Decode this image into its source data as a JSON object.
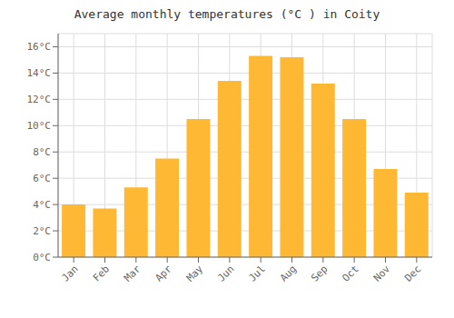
{
  "chart_data": {
    "type": "bar",
    "title": "Average monthly temperatures (°C ) in Coity",
    "categories": [
      "Jan",
      "Feb",
      "Mar",
      "Apr",
      "May",
      "Jun",
      "Jul",
      "Aug",
      "Sep",
      "Oct",
      "Nov",
      "Dec"
    ],
    "values": [
      4.0,
      3.7,
      5.3,
      7.5,
      10.5,
      13.4,
      15.3,
      15.2,
      13.2,
      10.5,
      6.7,
      4.9
    ],
    "color": "#FFB833",
    "ylim": [
      0,
      17
    ],
    "yticks": [
      {
        "value": 0,
        "label": "0°C"
      },
      {
        "value": 2,
        "label": "2°C"
      },
      {
        "value": 4,
        "label": "4°C"
      },
      {
        "value": 6,
        "label": "6°C"
      },
      {
        "value": 8,
        "label": "8°C"
      },
      {
        "value": 10,
        "label": "10°C"
      },
      {
        "value": 12,
        "label": "12°C"
      },
      {
        "value": 14,
        "label": "14°C"
      },
      {
        "value": 16,
        "label": "16°C"
      }
    ],
    "grid": true
  }
}
